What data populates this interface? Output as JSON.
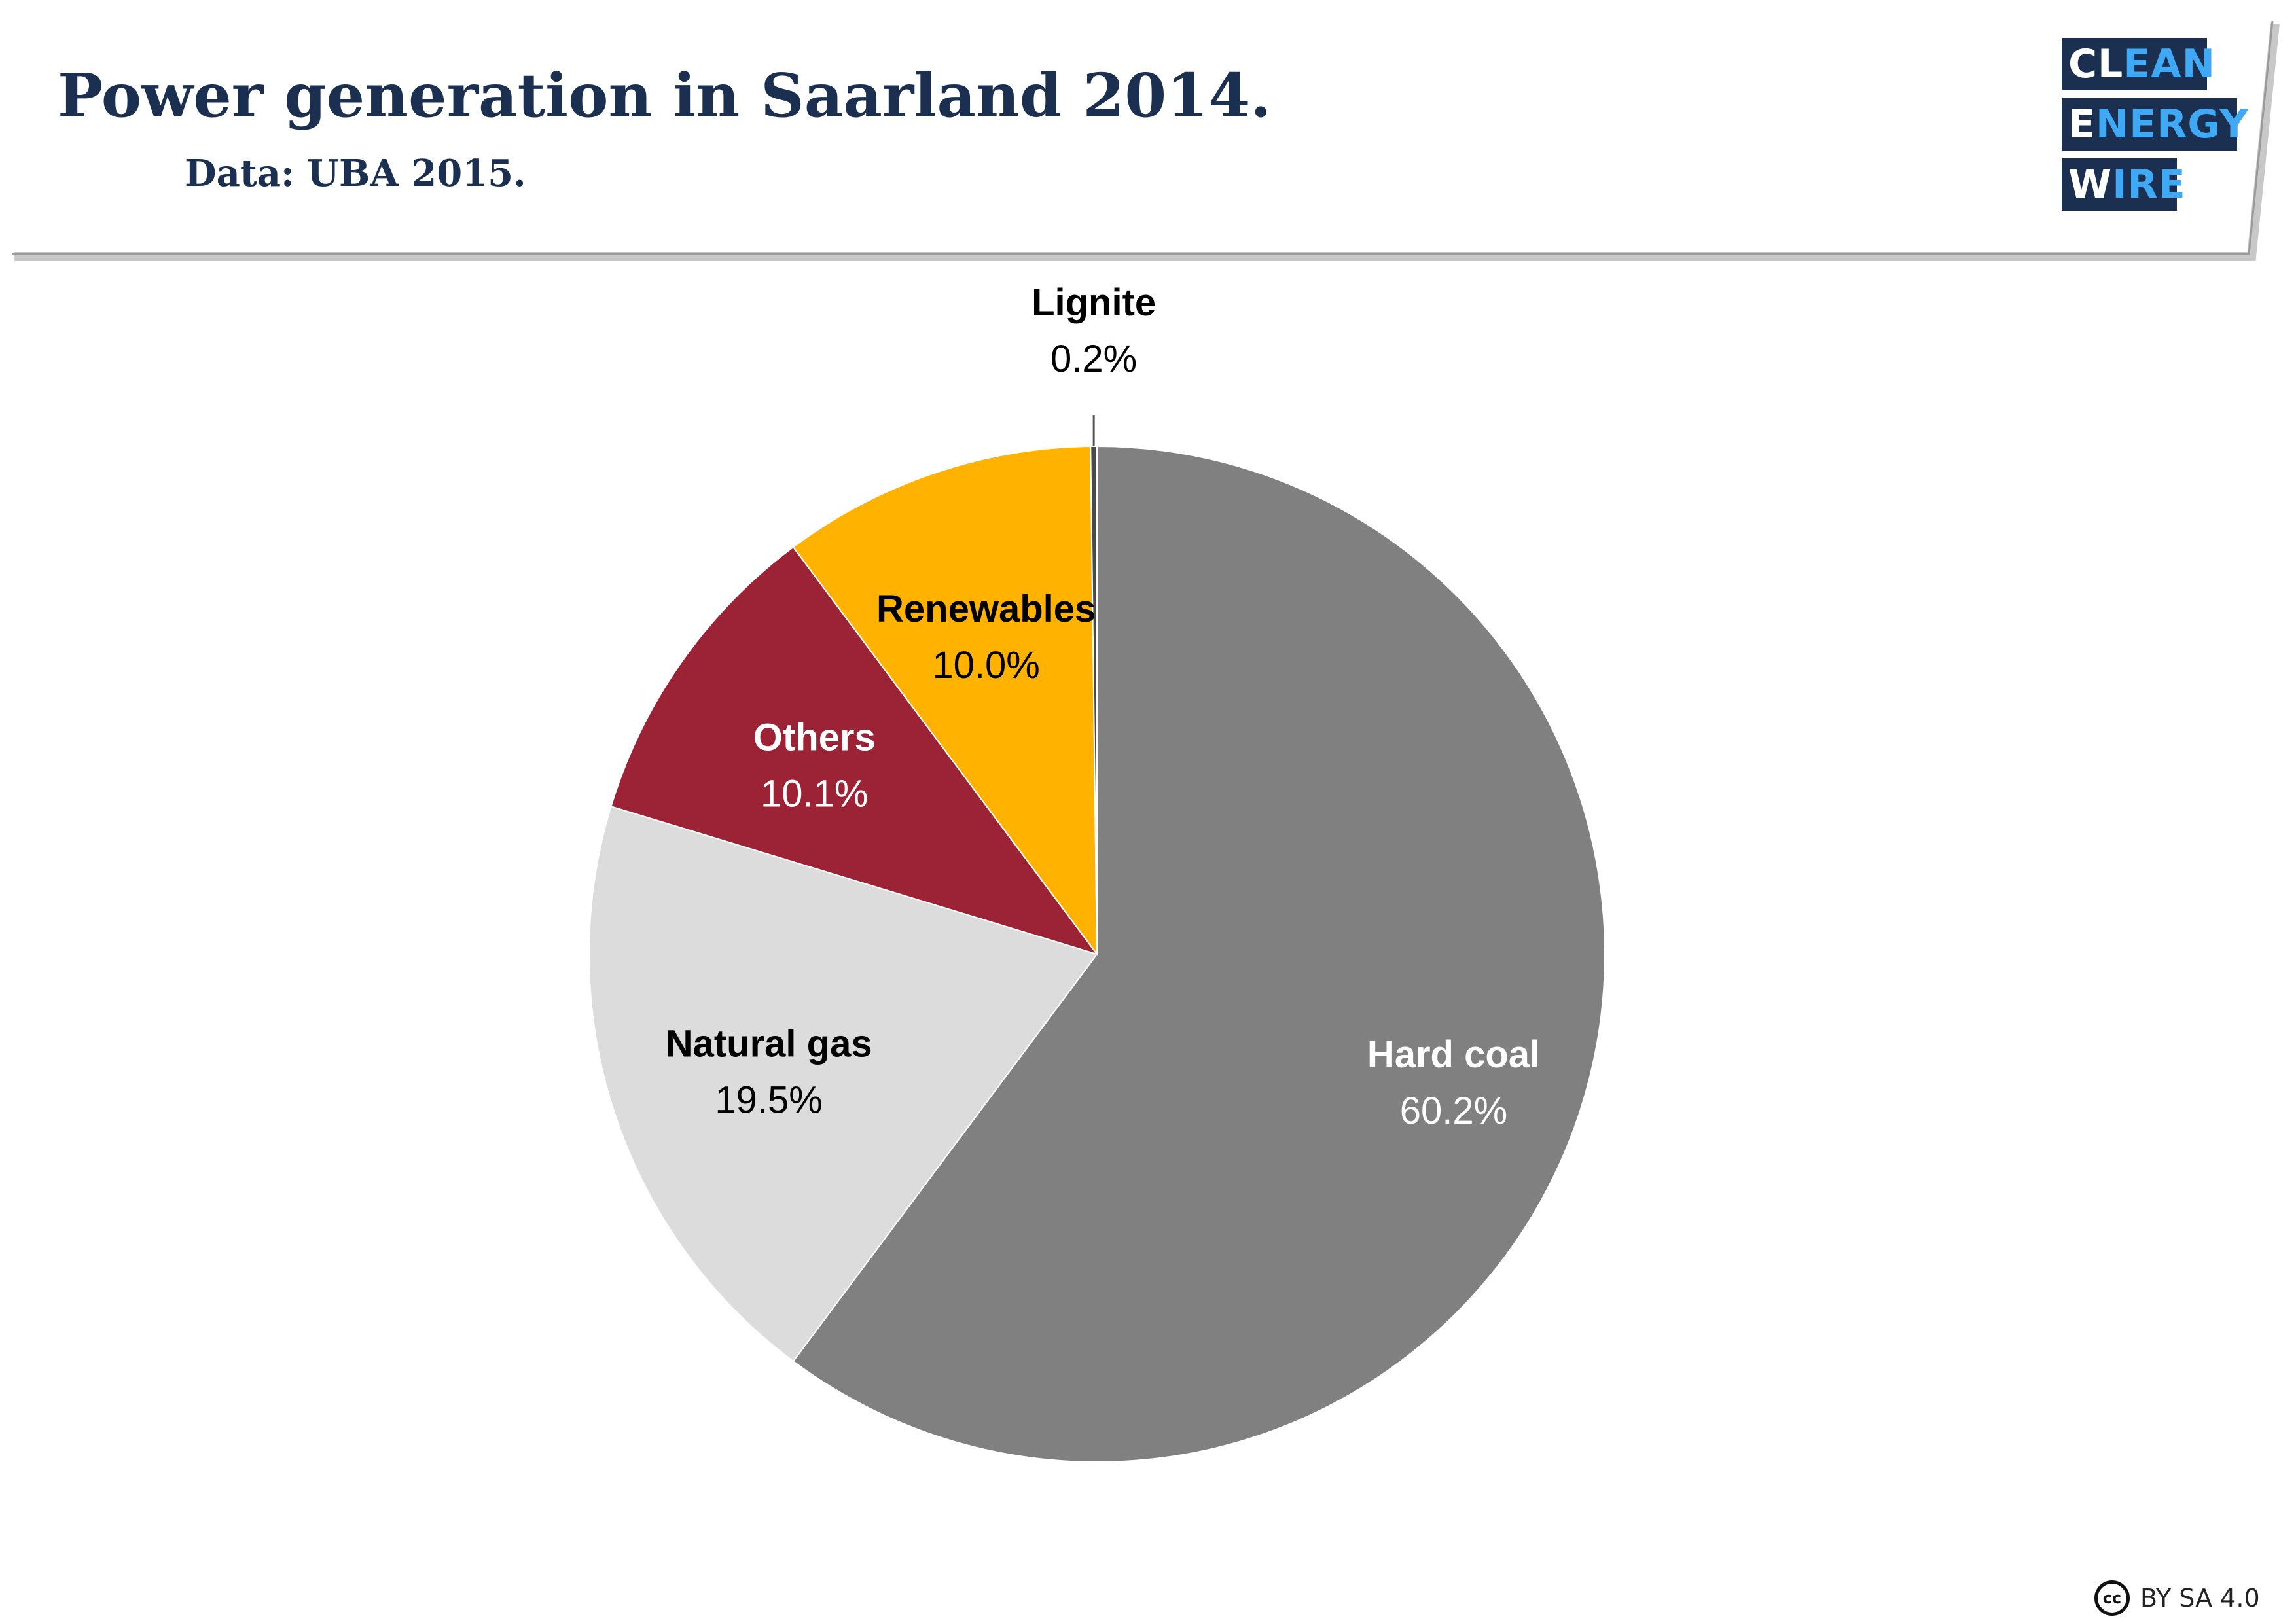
{
  "header": {
    "title": "Power generation in Saarland 2014.",
    "subtitle": "Data: UBA 2015."
  },
  "logo": {
    "lines": [
      {
        "white": "CL",
        "blue": "EAN"
      },
      {
        "white": "E",
        "blue": "NERGY"
      },
      {
        "white": "W",
        "blue": "IRE"
      }
    ]
  },
  "license": {
    "icon": "cc",
    "text": "BY SA 4.0"
  },
  "chart_data": {
    "type": "pie",
    "title": "Power generation in Saarland 2014.",
    "subtitle": "Data: UBA 2015.",
    "start_angle_deg": 0,
    "direction": "clockwise",
    "slices": [
      {
        "label": "Hard coal",
        "value": 60.2,
        "value_label": "60.2%",
        "color": "#808080",
        "label_color": "#ffffff"
      },
      {
        "label": "Natural gas",
        "value": 19.5,
        "value_label": "19.5%",
        "color": "#dcdcdc",
        "label_color": "#000000"
      },
      {
        "label": "Others",
        "value": 10.1,
        "value_label": "10.1%",
        "color": "#9b2335",
        "label_color": "#ffffff"
      },
      {
        "label": "Renewables",
        "value": 10.0,
        "value_label": "10.0%",
        "color": "#ffb300",
        "label_color": "#000000"
      },
      {
        "label": "Lignite",
        "value": 0.2,
        "value_label": "0.2%",
        "color": "#4a4a4a",
        "label_color": "#000000",
        "label_outside": true
      }
    ]
  }
}
